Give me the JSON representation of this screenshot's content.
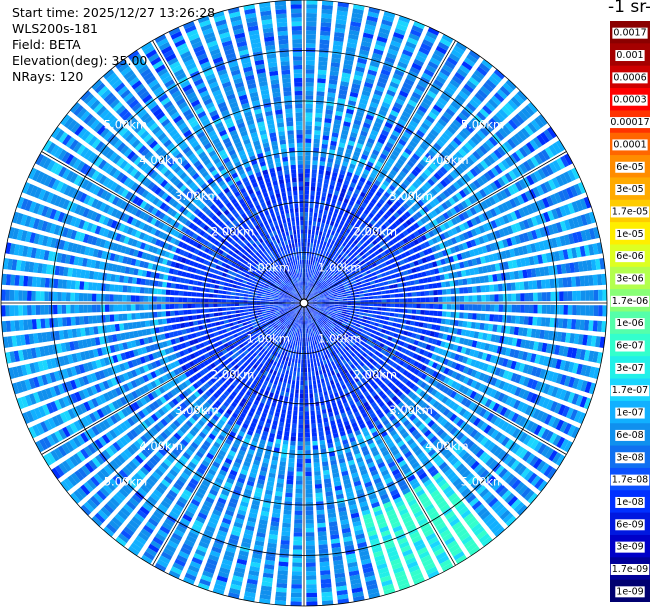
{
  "info": {
    "start_time": "Start time: 2025/12/27 13:26:28",
    "instrument": "WLS200s-181",
    "field": "Field: BETA",
    "elevation": "Elevation(deg): 35.00",
    "nrays": "NRays: 120"
  },
  "units_label": "-1 sr-",
  "colorbar": {
    "labels": [
      "0.0017",
      "0.001",
      "0.0006",
      "0.0003",
      "0.00017",
      "0.0001",
      "6e-05",
      "3e-05",
      "1.7e-05",
      "1e-05",
      "6e-06",
      "3e-06",
      "1.7e-06",
      "1e-06",
      "6e-07",
      "3e-07",
      "1.7e-07",
      "1e-07",
      "6e-08",
      "3e-08",
      "1.7e-08",
      "1e-08",
      "6e-09",
      "3e-09",
      "1.7e-09",
      "1e-09"
    ],
    "colors": [
      "#8b0000",
      "#a50000",
      "#cd0000",
      "#ff0000",
      "#ff3300",
      "#ff6600",
      "#ff8c00",
      "#ffaa00",
      "#ffcc00",
      "#ffee00",
      "#ddff22",
      "#b3ff4d",
      "#88ff77",
      "#55ffaa",
      "#33ffcc",
      "#22f0e8",
      "#1ad6ff",
      "#11b0ff",
      "#1090ee",
      "#1070f0",
      "#0a50ff",
      "#0030ff",
      "#0018e0",
      "#0000c8",
      "#00009a",
      "#000070"
    ]
  },
  "chart_data": {
    "type": "heatmap",
    "projection": "polar",
    "field": "BETA",
    "elevation_deg": 35.0,
    "n_rays": 120,
    "range_rings_km": [
      1,
      2,
      3,
      4,
      5
    ],
    "range_ring_labels": [
      "1.00km",
      "2.00km",
      "3.00km",
      "4.00km",
      "5.00km"
    ],
    "max_range_km": 6.0,
    "typical_value": "3e-08",
    "high_region": {
      "azimuth_deg": [
        140,
        165
      ],
      "range_km": [
        4.2,
        6.0
      ],
      "value": "3e-07"
    }
  }
}
